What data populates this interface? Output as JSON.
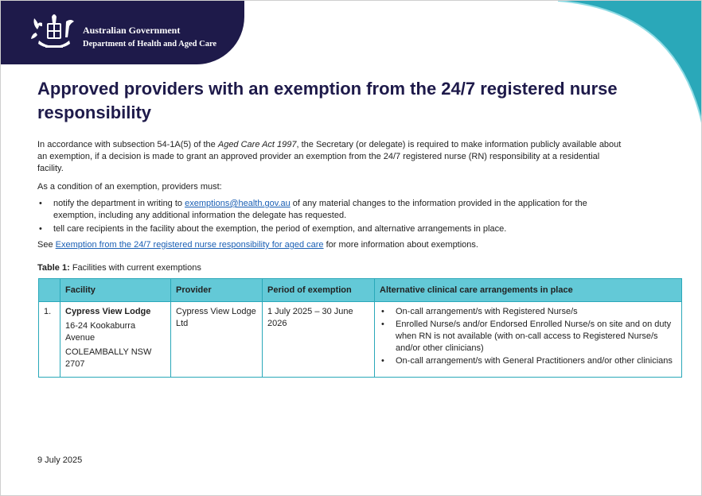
{
  "header": {
    "gov_name": "Australian Government",
    "department": "Department of Health and Aged Care",
    "colors": {
      "navy": "#1e1a4a",
      "teal": "#2aa8b9"
    }
  },
  "title": "Approved providers with an exemption from the 24/7 registered nurse responsibility",
  "intro": {
    "part1": "In accordance with subsection 54-1A(5) of the ",
    "act": "Aged Care Act 1997",
    "part2": ", the Secretary (or delegate) is required to make information publicly available about an exemption, if a decision is made to grant an approved provider an exemption from the 24/7 registered nurse (RN) responsibility at a residential facility."
  },
  "condition_intro": "As a condition of an exemption, providers must:",
  "bullets": {
    "b1_pre": "notify the department in writing to ",
    "b1_link": "exemptions@health.gov.au",
    "b1_post": " of any material changes to the information provided in the application for the exemption, including any additional information the delegate has requested.",
    "b2": "tell care recipients in the facility about the exemption, the period of exemption, and alternative arrangements in place."
  },
  "see": {
    "pre": "See ",
    "link": "Exemption from the 24/7 registered nurse responsibility for aged care",
    "post": " for more information about exemptions."
  },
  "table": {
    "caption_label": "Table 1:",
    "caption_text": " Facilities with current exemptions",
    "headers": [
      "",
      "Facility",
      "Provider",
      "Period of exemption",
      "Alternative clinical care arrangements in place"
    ],
    "rows": [
      {
        "num": "1.",
        "facility_name": "Cypress View Lodge",
        "facility_address1": "16-24 Kookaburra Avenue",
        "facility_address2": "COLEAMBALLY NSW 2707",
        "provider": "Cypress View Lodge Ltd",
        "period": "1 July 2025 – 30 June 2026",
        "arrangements": [
          "On-call arrangement/s with Registered Nurse/s",
          "Enrolled Nurse/s and/or Endorsed Enrolled Nurse/s on site and on duty when RN is not available (with on-call access to Registered Nurse/s and/or other clinicians)",
          "On-call arrangement/s with General Practitioners and/or other clinicians"
        ]
      }
    ]
  },
  "date": "9 July 2025"
}
